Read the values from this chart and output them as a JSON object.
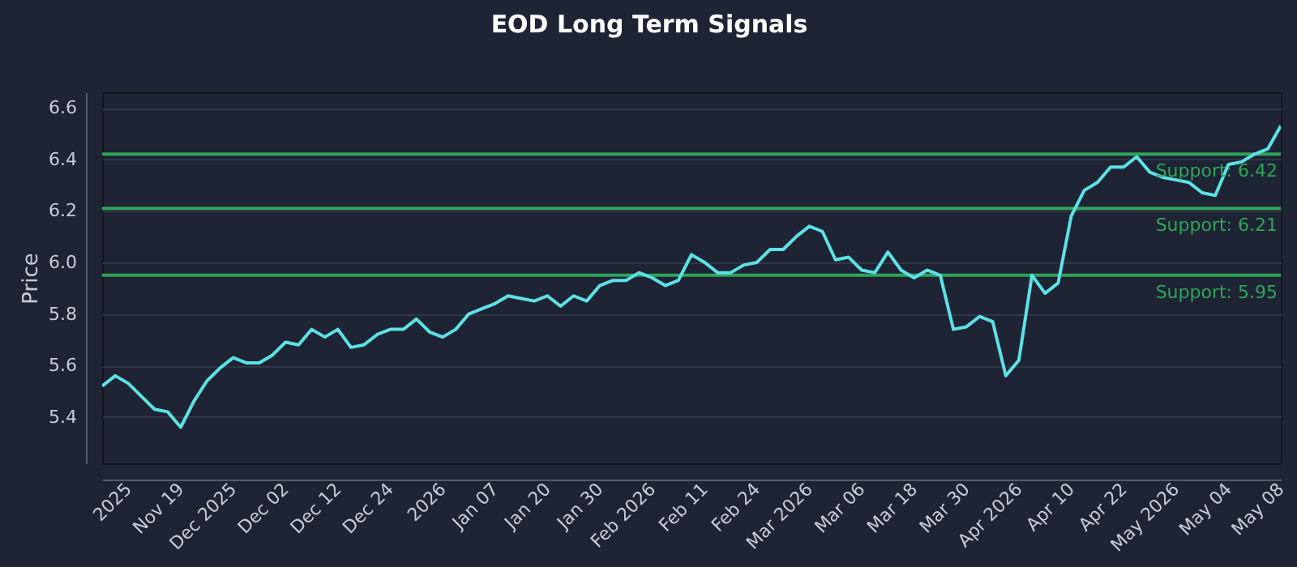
{
  "chart_data": {
    "type": "line",
    "title": "EOD Long Term Signals",
    "ylabel": "Price",
    "categories": [
      null,
      null,
      "2025",
      null,
      null,
      null,
      "Nov 19",
      null,
      null,
      null,
      "Dec 2025",
      null,
      null,
      null,
      "Dec 02",
      null,
      null,
      null,
      "Dec 12",
      null,
      null,
      null,
      "Dec 24",
      null,
      null,
      null,
      "2026",
      null,
      null,
      null,
      "Jan 07",
      null,
      null,
      null,
      "Jan 20",
      null,
      null,
      null,
      "Jan 30",
      null,
      null,
      null,
      "Feb 2026",
      null,
      null,
      null,
      "Feb 11",
      null,
      null,
      null,
      "Feb 24",
      null,
      null,
      null,
      "Mar 2026",
      null,
      null,
      null,
      "Mar 06",
      null,
      null,
      null,
      "Mar 18",
      null,
      null,
      null,
      "Mar 30",
      null,
      null,
      null,
      "Apr 2026",
      null,
      null,
      null,
      "Apr 10",
      null,
      null,
      null,
      "Apr 22",
      null,
      null,
      null,
      "May 2026",
      null,
      null,
      null,
      "May 04",
      null,
      null,
      null,
      "May 08"
    ],
    "series": [
      {
        "color": "#5ce1e6",
        "values": [
          5.52,
          5.56,
          5.53,
          5.48,
          5.43,
          5.42,
          5.36,
          5.46,
          5.54,
          5.59,
          5.63,
          5.61,
          5.61,
          5.64,
          5.69,
          5.68,
          5.74,
          5.71,
          5.74,
          5.67,
          5.68,
          5.72,
          5.74,
          5.74,
          5.78,
          5.73,
          5.71,
          5.74,
          5.8,
          5.82,
          5.84,
          5.87,
          5.86,
          5.85,
          5.87,
          5.83,
          5.87,
          5.85,
          5.91,
          5.93,
          5.93,
          5.96,
          5.94,
          5.91,
          5.93,
          6.03,
          6.0,
          5.96,
          5.96,
          5.99,
          6.0,
          6.05,
          6.05,
          6.1,
          6.14,
          6.12,
          6.01,
          6.02,
          5.97,
          5.96,
          6.04,
          5.97,
          5.94,
          5.97,
          5.95,
          5.74,
          5.75,
          5.79,
          5.77,
          5.56,
          5.62,
          5.95,
          5.88,
          5.92,
          6.18,
          6.28,
          6.31,
          6.37,
          6.37,
          6.41,
          6.35,
          6.33,
          6.32,
          6.31,
          6.27,
          6.26,
          6.38,
          6.39,
          6.42,
          6.44,
          6.53
        ]
      }
    ],
    "ylim": [
      5.22,
      6.66
    ],
    "yticks": [
      5.4,
      5.6,
      5.8,
      {
        "value": 6,
        "label": "6.0"
      },
      6.2,
      6.4,
      6.6
    ],
    "grid": "y",
    "ref_lines": [
      {
        "axis": "y",
        "value": 6.42,
        "label": "Support: 6.42",
        "color": "#2ea55a"
      },
      {
        "axis": "y",
        "value": 6.21,
        "label": "Support: 6.21",
        "color": "#2ea55a"
      },
      {
        "axis": "y",
        "value": 5.95,
        "label": "Support: 5.95",
        "color": "#2ea55a"
      }
    ]
  }
}
